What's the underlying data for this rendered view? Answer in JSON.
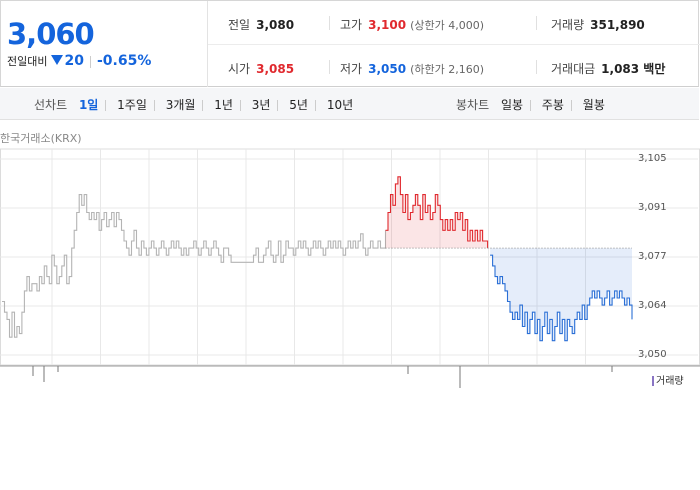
{
  "quote": {
    "price": "3,060",
    "change_label": "전일대비",
    "change_amount": "20",
    "change_rate": "-0.65%",
    "prev_close": {
      "label": "전일",
      "value": "3,080"
    },
    "open": {
      "label": "시가",
      "value": "3,085"
    },
    "high": {
      "label": "고가",
      "value": "3,100",
      "sub": "(상한가 4,000)"
    },
    "low": {
      "label": "저가",
      "value": "3,050",
      "sub": "(하한가 2,160)"
    },
    "volume": {
      "label": "거래량",
      "value": "351,890"
    },
    "trade_value": {
      "label": "거래대금",
      "value": "1,083 백만"
    }
  },
  "tabs": {
    "line_title": "선차트",
    "line_periods": [
      "1일",
      "1주일",
      "3개월",
      "1년",
      "3년",
      "5년",
      "10년"
    ],
    "line_active": "1일",
    "candle_title": "봉차트",
    "candle_periods": [
      "일봉",
      "주봉",
      "월봉"
    ]
  },
  "chart": {
    "source": "한국거래소(KRX)",
    "volume_legend": "거래량",
    "colors": {
      "up": "#e0292e",
      "down": "#2a6fd6",
      "neutral": "#b4b4b4",
      "grid": "#e8e8e8",
      "volume": "#8a75c4"
    }
  },
  "chart_data": {
    "type": "line",
    "y_ticks": [
      "3,105",
      "3,091",
      "3,077",
      "3,064",
      "3,050"
    ],
    "ylim": [
      3050,
      3105
    ],
    "reference_price": 3080,
    "series": [
      {
        "values": [
          3065,
          3062,
          3060,
          3055,
          3062,
          3055,
          3058,
          3056,
          3062,
          3068,
          3072,
          3068,
          3070,
          3070,
          3068,
          3072,
          3070,
          3075,
          3072,
          3070,
          3078,
          3075,
          3070,
          3072,
          3075,
          3078,
          3070,
          3072,
          3080,
          3085,
          3090,
          3095,
          3092,
          3095,
          3090,
          3088,
          3090,
          3088,
          3090,
          3085,
          3088,
          3090,
          3086,
          3088,
          3090,
          3086,
          3090,
          3088,
          3085,
          3082,
          3080,
          3078,
          3082,
          3085,
          3080,
          3078,
          3082,
          3080,
          3078,
          3080,
          3082,
          3080,
          3078,
          3080,
          3082,
          3080,
          3078,
          3080,
          3082,
          3080,
          3082,
          3080,
          3078,
          3080,
          3078,
          3080,
          3080,
          3082,
          3080,
          3078,
          3080,
          3082,
          3080,
          3078,
          3080,
          3082,
          3080,
          3078,
          3076,
          3080,
          3080,
          3078,
          3076,
          3076,
          3076,
          3076,
          3076,
          3076,
          3076,
          3076,
          3076,
          3078,
          3080,
          3076,
          3076,
          3078,
          3080,
          3082,
          3078,
          3076,
          3078,
          3082,
          3076,
          3078,
          3082,
          3080,
          3080,
          3078,
          3080,
          3082,
          3080,
          3082,
          3080,
          3078,
          3080,
          3082,
          3080,
          3082,
          3080,
          3078,
          3080,
          3082,
          3080,
          3082,
          3080,
          3082,
          3080,
          3078,
          3080,
          3082,
          3080,
          3082,
          3080,
          3082,
          3084,
          3080,
          3078,
          3080,
          3082,
          3080,
          3080,
          3082,
          3080,
          3080,
          3085,
          3090,
          3095,
          3092,
          3098,
          3100,
          3095,
          3090,
          3095,
          3088,
          3090,
          3092,
          3095,
          3092,
          3088,
          3095,
          3090,
          3092,
          3088,
          3090,
          3095,
          3092,
          3088,
          3085,
          3088,
          3085,
          3088,
          3085,
          3090,
          3088,
          3090,
          3085,
          3088,
          3082,
          3085,
          3082,
          3085,
          3082,
          3085,
          3082,
          3082,
          3080,
          3078,
          3075,
          3072,
          3070,
          3072,
          3070,
          3068,
          3065,
          3062,
          3060,
          3062,
          3060,
          3064,
          3058,
          3062,
          3056,
          3060,
          3062,
          3056,
          3060,
          3054,
          3058,
          3062,
          3056,
          3060,
          3054,
          3058,
          3062,
          3056,
          3060,
          3054,
          3060,
          3058,
          3056,
          3060,
          3062,
          3060,
          3064,
          3060,
          3064,
          3066,
          3068,
          3066,
          3068,
          3066,
          3064,
          3066,
          3068,
          3064,
          3066,
          3068,
          3066,
          3068,
          3066,
          3064,
          3066,
          3064,
          3060
        ]
      }
    ]
  }
}
